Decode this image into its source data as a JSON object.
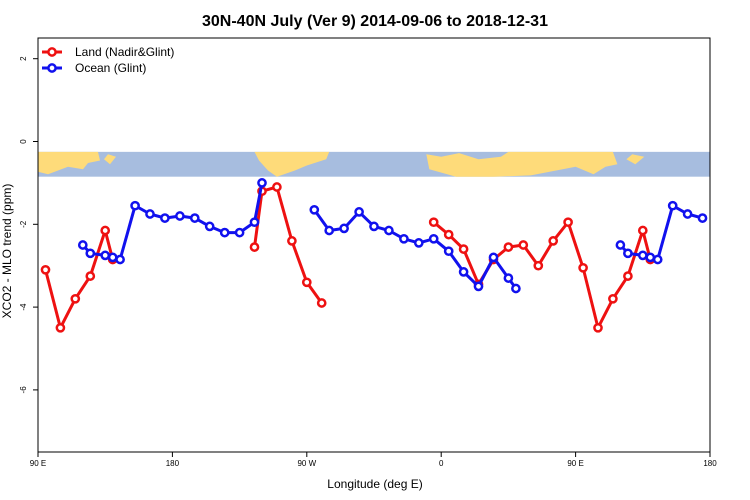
{
  "chart_data": {
    "type": "line",
    "title": "30N-40N July (Ver 9)   2014-09-06 to 2018-12-31",
    "xlabel": "Longitude (deg E)",
    "ylabel": "XCO2 - MLO trend (ppm)",
    "xlim": [
      90,
      540
    ],
    "ylim": [
      -7.5,
      2.5
    ],
    "x_ticks": [
      {
        "value": 90,
        "label": "90 E"
      },
      {
        "value": 180,
        "label": "180"
      },
      {
        "value": 270,
        "label": "90 W"
      },
      {
        "value": 360,
        "label": "0"
      },
      {
        "value": 450,
        "label": "90 E"
      },
      {
        "value": 540,
        "label": "180"
      }
    ],
    "y_ticks": [
      {
        "value": 2,
        "label": "2"
      },
      {
        "value": 0,
        "label": "0"
      },
      {
        "value": -2,
        "label": "-2"
      },
      {
        "value": -4,
        "label": "-4"
      },
      {
        "value": -6,
        "label": "-6"
      }
    ],
    "map_band": {
      "ymin": -0.85,
      "ymax": -0.25,
      "ocean_color": "#a7bddf",
      "land_color": "#fedb7a"
    },
    "legend": {
      "position": "top-left"
    },
    "series": [
      {
        "name": "Land (Nadir&Glint)",
        "color": "#ee1111",
        "segments": [
          [
            [
              95,
              -3.1
            ],
            [
              105,
              -4.5
            ],
            [
              115,
              -3.8
            ],
            [
              125,
              -3.25
            ],
            [
              135,
              -2.15
            ],
            [
              140,
              -2.85
            ]
          ],
          [
            [
              235,
              -2.55
            ],
            [
              240,
              -1.2
            ],
            [
              250,
              -1.1
            ],
            [
              260,
              -2.4
            ],
            [
              270,
              -3.4
            ],
            [
              280,
              -3.9
            ]
          ],
          [
            [
              355,
              -1.95
            ],
            [
              365,
              -2.25
            ],
            [
              375,
              -2.6
            ],
            [
              385,
              -3.45
            ],
            [
              395,
              -2.85
            ],
            [
              405,
              -2.55
            ],
            [
              415,
              -2.5
            ],
            [
              425,
              -3.0
            ],
            [
              435,
              -2.4
            ],
            [
              445,
              -1.95
            ],
            [
              455,
              -3.05
            ],
            [
              465,
              -4.5
            ],
            [
              475,
              -3.8
            ],
            [
              485,
              -3.25
            ],
            [
              495,
              -2.15
            ],
            [
              500,
              -2.85
            ]
          ]
        ]
      },
      {
        "name": "Ocean (Glint)",
        "color": "#1111ee",
        "segments": [
          [
            [
              120,
              -2.5
            ],
            [
              125,
              -2.7
            ],
            [
              135,
              -2.75
            ],
            [
              140,
              -2.8
            ],
            [
              145,
              -2.85
            ],
            [
              155,
              -1.55
            ],
            [
              165,
              -1.75
            ],
            [
              175,
              -1.85
            ],
            [
              185,
              -1.8
            ],
            [
              195,
              -1.85
            ],
            [
              205,
              -2.05
            ],
            [
              215,
              -2.2
            ],
            [
              225,
              -2.2
            ],
            [
              235,
              -1.95
            ],
            [
              240,
              -1.0
            ]
          ],
          [
            [
              275,
              -1.65
            ],
            [
              285,
              -2.15
            ],
            [
              295,
              -2.1
            ],
            [
              305,
              -1.7
            ],
            [
              315,
              -2.05
            ],
            [
              325,
              -2.15
            ],
            [
              335,
              -2.35
            ],
            [
              345,
              -2.45
            ],
            [
              355,
              -2.35
            ],
            [
              365,
              -2.65
            ],
            [
              375,
              -3.15
            ],
            [
              385,
              -3.5
            ],
            [
              395,
              -2.8
            ],
            [
              405,
              -3.3
            ],
            [
              410,
              -3.55
            ]
          ],
          [
            [
              480,
              -2.5
            ],
            [
              485,
              -2.7
            ],
            [
              495,
              -2.75
            ],
            [
              500,
              -2.8
            ],
            [
              505,
              -2.85
            ],
            [
              515,
              -1.55
            ],
            [
              525,
              -1.75
            ],
            [
              535,
              -1.85
            ]
          ]
        ]
      }
    ]
  }
}
